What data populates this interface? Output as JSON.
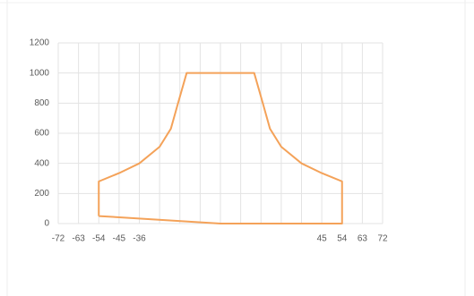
{
  "chart_data": {
    "type": "line",
    "series": [
      {
        "color": "#f4a259",
        "x": [
          -54,
          -54,
          -45,
          -36,
          -27,
          -22,
          -19,
          -15,
          15,
          19,
          22,
          27,
          36,
          45,
          54,
          54,
          0,
          -54
        ],
        "values": [
          50,
          280,
          335,
          400,
          510,
          630,
          790,
          1000,
          1000,
          790,
          630,
          510,
          400,
          335,
          280,
          0,
          0,
          50
        ]
      }
    ],
    "xlim": [
      -72,
      72
    ],
    "xticks": [
      -72,
      -63,
      -54,
      -45,
      -36,
      {
        "value": -27,
        "label": null
      },
      {
        "value": -18,
        "label": null
      },
      {
        "value": -9,
        "label": null
      },
      {
        "value": 0,
        "label": null
      },
      {
        "value": 9,
        "label": null
      },
      {
        "value": 18,
        "label": null
      },
      {
        "value": 27,
        "label": null
      },
      {
        "value": 36,
        "label": null
      },
      45,
      54,
      63,
      72
    ],
    "ylim": [
      0,
      1200
    ],
    "yticks": [
      0,
      200,
      400,
      600,
      800,
      1000,
      1200
    ],
    "grid": true
  }
}
